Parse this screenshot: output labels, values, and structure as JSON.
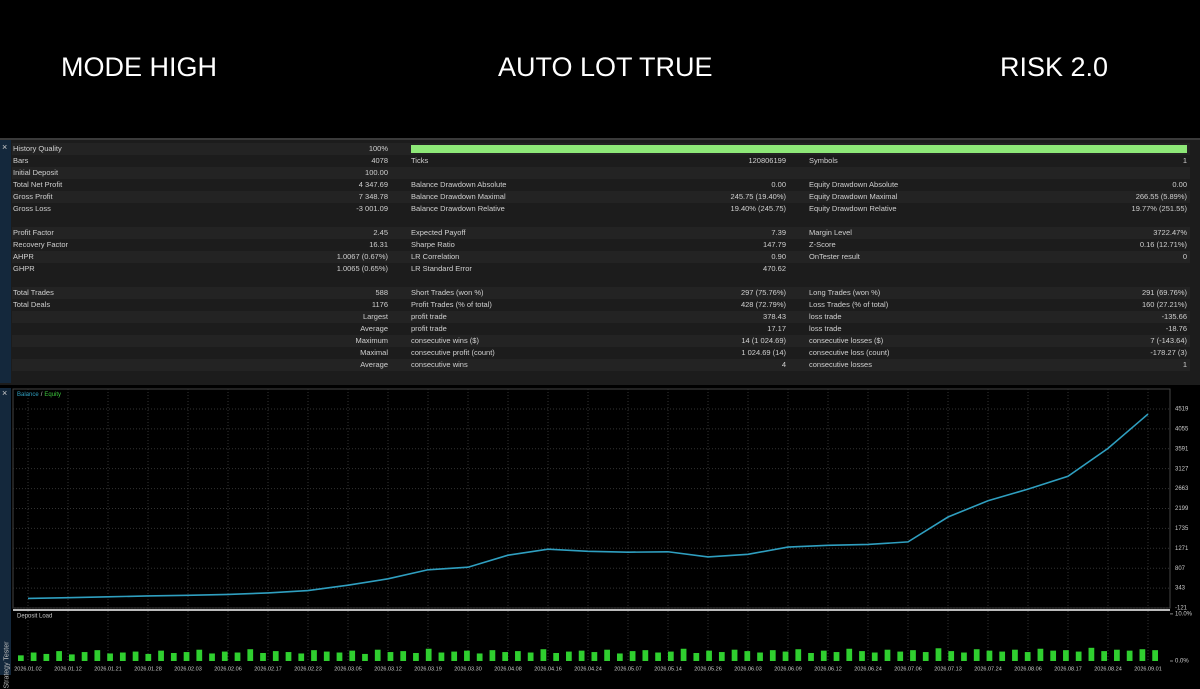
{
  "header": {
    "left": "MODE HIGH",
    "center": "AUTO LOT TRUE",
    "right": "RISK 2.0"
  },
  "side_label": "Strategy Tester",
  "stats": {
    "sections": [
      {
        "rows": [
          {
            "c1": {
              "label": "History Quality",
              "value": "100%"
            }
          },
          {
            "c1": {
              "label": "Bars",
              "value": "4078"
            },
            "c2": {
              "label": "Ticks",
              "value": "120806199"
            },
            "c3": {
              "label": "Symbols",
              "value": "1"
            }
          },
          {
            "c1": {
              "label": "Initial Deposit",
              "value": "100.00"
            }
          },
          {
            "c1": {
              "label": "Total Net Profit",
              "value": "4 347.69"
            },
            "c2": {
              "label": "Balance Drawdown Absolute",
              "value": "0.00"
            },
            "c3": {
              "label": "Equity Drawdown Absolute",
              "value": "0.00"
            }
          },
          {
            "c1": {
              "label": "Gross Profit",
              "value": "7 348.78"
            },
            "c2": {
              "label": "Balance Drawdown Maximal",
              "value": "245.75 (19.40%)"
            },
            "c3": {
              "label": "Equity Drawdown Maximal",
              "value": "266.55 (5.89%)"
            }
          },
          {
            "c1": {
              "label": "Gross Loss",
              "value": "-3 001.09"
            },
            "c2": {
              "label": "Balance Drawdown Relative",
              "value": "19.40% (245.75)"
            },
            "c3": {
              "label": "Equity Drawdown Relative",
              "value": "19.77% (251.55)"
            }
          }
        ]
      },
      {
        "rows": [
          {
            "c1": {
              "label": "Profit Factor",
              "value": "2.45"
            },
            "c2": {
              "label": "Expected Payoff",
              "value": "7.39"
            },
            "c3": {
              "label": "Margin Level",
              "value": "3722.47%"
            }
          },
          {
            "c1": {
              "label": "Recovery Factor",
              "value": "16.31"
            },
            "c2": {
              "label": "Sharpe Ratio",
              "value": "147.79"
            },
            "c3": {
              "label": "Z-Score",
              "value": "0.16 (12.71%)"
            }
          },
          {
            "c1": {
              "label": "AHPR",
              "value": "1.0067 (0.67%)"
            },
            "c2": {
              "label": "LR Correlation",
              "value": "0.90"
            },
            "c3": {
              "label": "OnTester result",
              "value": "0"
            }
          },
          {
            "c1": {
              "label": "GHPR",
              "value": "1.0065 (0.65%)"
            },
            "c2": {
              "label": "LR Standard Error",
              "value": "470.62"
            }
          }
        ]
      },
      {
        "rows": [
          {
            "c1": {
              "label": "Total Trades",
              "value": "588"
            },
            "c2": {
              "label": "Short Trades (won %)",
              "value": "297 (75.76%)"
            },
            "c3": {
              "label": "Long Trades (won %)",
              "value": "291 (69.76%)"
            }
          },
          {
            "c1": {
              "label": "Total Deals",
              "value": "1176"
            },
            "c2": {
              "label": "Profit Trades (% of total)",
              "value": "428 (72.79%)"
            },
            "c3": {
              "label": "Loss Trades (% of total)",
              "value": "160 (27.21%)"
            }
          },
          {
            "c1": {
              "value": "Largest"
            },
            "c2": {
              "label": "profit trade",
              "value": "378.43"
            },
            "c3": {
              "label": "loss trade",
              "value": "-135.66"
            }
          },
          {
            "c1": {
              "value": "Average"
            },
            "c2": {
              "label": "profit trade",
              "value": "17.17"
            },
            "c3": {
              "label": "loss trade",
              "value": "-18.76"
            }
          },
          {
            "c1": {
              "value": "Maximum"
            },
            "c2": {
              "label": "consecutive wins ($)",
              "value": "14 (1 024.69)"
            },
            "c3": {
              "label": "consecutive losses ($)",
              "value": "7 (-143.64)"
            }
          },
          {
            "c1": {
              "value": "Maximal"
            },
            "c2": {
              "label": "consecutive profit (count)",
              "value": "1 024.69 (14)"
            },
            "c3": {
              "label": "consecutive loss (count)",
              "value": "-178.27 (3)"
            }
          },
          {
            "c1": {
              "value": "Average"
            },
            "c2": {
              "label": "consecutive wins",
              "value": "4"
            },
            "c3": {
              "label": "consecutive losses",
              "value": "1"
            }
          }
        ]
      }
    ]
  },
  "chart_data": {
    "type": "line",
    "legend": {
      "items": [
        "Balance",
        "Equity"
      ],
      "separator": "/",
      "colors": [
        "#2f9fc0",
        "#3cc63c"
      ]
    },
    "x": [
      "2026.01.02",
      "2026.01.12",
      "2026.01.21",
      "2026.01.28",
      "2026.02.03",
      "2026.02.06",
      "2026.02.17",
      "2026.02.23",
      "2026.03.05",
      "2026.03.12",
      "2026.03.19",
      "2026.03.30",
      "2026.04.08",
      "2026.04.16",
      "2026.04.24",
      "2026.05.07",
      "2026.05.14",
      "2026.05.26",
      "2026.06.03",
      "2026.06.09",
      "2026.06.12",
      "2026.06.24",
      "2026.07.06",
      "2026.07.13",
      "2026.07.24",
      "2026.08.06",
      "2026.08.17",
      "2026.08.24",
      "2026.09.01"
    ],
    "series": [
      {
        "name": "Balance",
        "color": "#2f9fc0",
        "values": [
          102,
          120,
          140,
          160,
          175,
          195,
          230,
          285,
          410,
          560,
          770,
          830,
          1110,
          1250,
          1200,
          1180,
          1190,
          1070,
          1130,
          1300,
          1340,
          1360,
          1420,
          2000,
          2380,
          2650,
          2950,
          3600,
          4400
        ]
      }
    ],
    "ylim": [
      -121,
      4728
    ],
    "yticks": [
      4519,
      4055,
      3591,
      3127,
      2663,
      2199,
      1735,
      1271,
      807,
      343,
      -121
    ],
    "grid": true
  },
  "deposit_load": {
    "type": "bar",
    "label": "Deposit Load",
    "color": "#2fcf2f",
    "ylim": [
      0,
      10.4
    ],
    "yticks": [
      {
        "value": 10,
        "label": "10.0%"
      },
      {
        "value": 0,
        "label": "0.0%"
      }
    ],
    "values": [
      1.2,
      1.8,
      1.5,
      2.1,
      1.4,
      1.9,
      2.3,
      1.6,
      1.8,
      2.0,
      1.5,
      2.2,
      1.7,
      1.9,
      2.4,
      1.6,
      2.0,
      1.8,
      2.5,
      1.7,
      2.1,
      1.9,
      1.6,
      2.3,
      2.0,
      1.8,
      2.2,
      1.5,
      2.4,
      1.9,
      2.1,
      1.7,
      2.6,
      1.8,
      2.0,
      2.2,
      1.6,
      2.3,
      1.9,
      2.1,
      1.8,
      2.5,
      1.7,
      2.0,
      2.2,
      1.9,
      2.4,
      1.6,
      2.1,
      2.3,
      1.8,
      2.0,
      2.6,
      1.7,
      2.2,
      1.9,
      2.4,
      2.1,
      1.8,
      2.3,
      2.0,
      2.5,
      1.7,
      2.2,
      1.9,
      2.6,
      2.1,
      1.8,
      2.4,
      2.0,
      2.3,
      1.9,
      2.7,
      2.1,
      1.8,
      2.5,
      2.2,
      2.0,
      2.4,
      1.9,
      2.6,
      2.2,
      2.3,
      2.0,
      2.8,
      2.1,
      2.4,
      2.2,
      2.5,
      2.3
    ]
  }
}
